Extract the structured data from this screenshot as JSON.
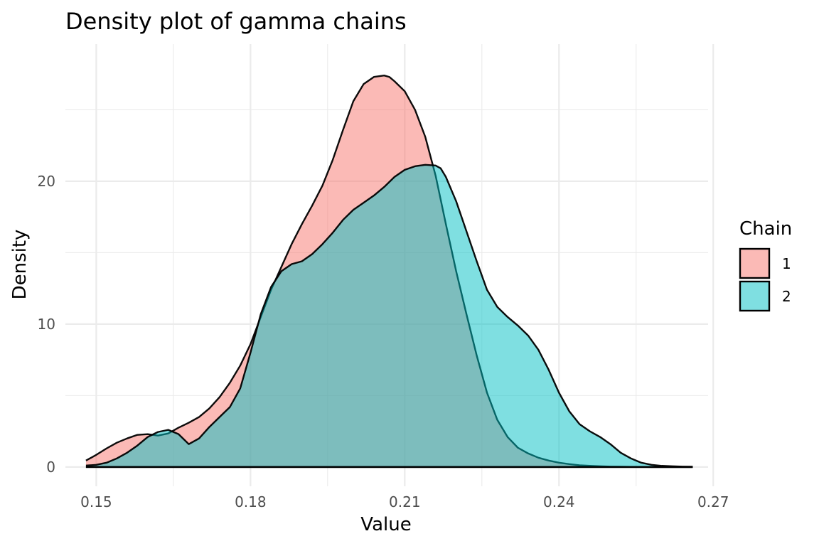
{
  "chart_data": {
    "type": "area",
    "title": "Density plot of gamma chains",
    "xlabel": "Value",
    "ylabel": "Density",
    "xlim": [
      0.144,
      0.269
    ],
    "ylim": [
      -1.35,
      29.6
    ],
    "x_ticks": [
      0.15,
      0.18,
      0.21,
      0.24,
      0.27
    ],
    "x_tick_labels": [
      "0.15",
      "0.18",
      "0.21",
      "0.24",
      "0.27"
    ],
    "y_ticks": [
      0,
      10,
      20
    ],
    "y_tick_labels": [
      "0",
      "10",
      "20"
    ],
    "grid": true,
    "legend": {
      "title": "Chain",
      "placement": "right"
    },
    "series": [
      {
        "name": "1",
        "color": "#F8766D",
        "opacity": 0.5,
        "x": [
          0.148,
          0.15,
          0.152,
          0.154,
          0.156,
          0.158,
          0.16,
          0.162,
          0.164,
          0.166,
          0.168,
          0.17,
          0.172,
          0.174,
          0.176,
          0.178,
          0.18,
          0.182,
          0.184,
          0.186,
          0.188,
          0.19,
          0.192,
          0.194,
          0.196,
          0.198,
          0.2,
          0.202,
          0.204,
          0.206,
          0.207,
          0.208,
          0.21,
          0.212,
          0.214,
          0.216,
          0.218,
          0.22,
          0.222,
          0.224,
          0.226,
          0.228,
          0.23,
          0.232,
          0.234,
          0.236,
          0.238,
          0.24,
          0.242,
          0.244,
          0.246,
          0.248,
          0.25,
          0.252,
          0.254,
          0.256,
          0.258,
          0.26,
          0.262,
          0.264,
          0.266
        ],
        "y": [
          0.45,
          0.85,
          1.3,
          1.7,
          2.0,
          2.25,
          2.3,
          2.2,
          2.35,
          2.75,
          3.1,
          3.5,
          4.1,
          4.9,
          5.9,
          7.1,
          8.6,
          10.5,
          12.4,
          14.0,
          15.6,
          17.0,
          18.3,
          19.7,
          21.5,
          23.6,
          25.6,
          26.8,
          27.3,
          27.4,
          27.3,
          27.0,
          26.3,
          25.0,
          23.1,
          20.4,
          17.0,
          13.7,
          10.7,
          7.8,
          5.2,
          3.3,
          2.1,
          1.35,
          0.95,
          0.65,
          0.45,
          0.3,
          0.2,
          0.12,
          0.08,
          0.05,
          0.03,
          0.02,
          0.01,
          0.01,
          0.0,
          0.0,
          0.0,
          0.0,
          0.0
        ]
      },
      {
        "name": "2",
        "color": "#00BFC4",
        "opacity": 0.5,
        "x": [
          0.148,
          0.15,
          0.152,
          0.154,
          0.156,
          0.158,
          0.16,
          0.162,
          0.164,
          0.166,
          0.168,
          0.17,
          0.172,
          0.174,
          0.176,
          0.178,
          0.18,
          0.182,
          0.184,
          0.186,
          0.188,
          0.19,
          0.192,
          0.194,
          0.196,
          0.198,
          0.2,
          0.202,
          0.204,
          0.206,
          0.208,
          0.21,
          0.212,
          0.214,
          0.216,
          0.217,
          0.218,
          0.22,
          0.222,
          0.224,
          0.226,
          0.228,
          0.23,
          0.232,
          0.234,
          0.236,
          0.238,
          0.24,
          0.242,
          0.244,
          0.246,
          0.248,
          0.25,
          0.252,
          0.254,
          0.256,
          0.258,
          0.26,
          0.262,
          0.264,
          0.266
        ],
        "y": [
          0.1,
          0.15,
          0.3,
          0.6,
          1.0,
          1.5,
          2.1,
          2.45,
          2.6,
          2.3,
          1.6,
          2.0,
          2.8,
          3.5,
          4.2,
          5.5,
          8.0,
          10.7,
          12.6,
          13.7,
          14.2,
          14.4,
          14.9,
          15.6,
          16.4,
          17.3,
          18.0,
          18.5,
          19.0,
          19.6,
          20.3,
          20.8,
          21.05,
          21.15,
          21.1,
          20.9,
          20.3,
          18.6,
          16.5,
          14.4,
          12.4,
          11.2,
          10.5,
          9.9,
          9.2,
          8.2,
          6.8,
          5.2,
          3.9,
          3.0,
          2.5,
          2.1,
          1.6,
          1.0,
          0.6,
          0.3,
          0.15,
          0.08,
          0.05,
          0.03,
          0.02
        ]
      }
    ]
  }
}
